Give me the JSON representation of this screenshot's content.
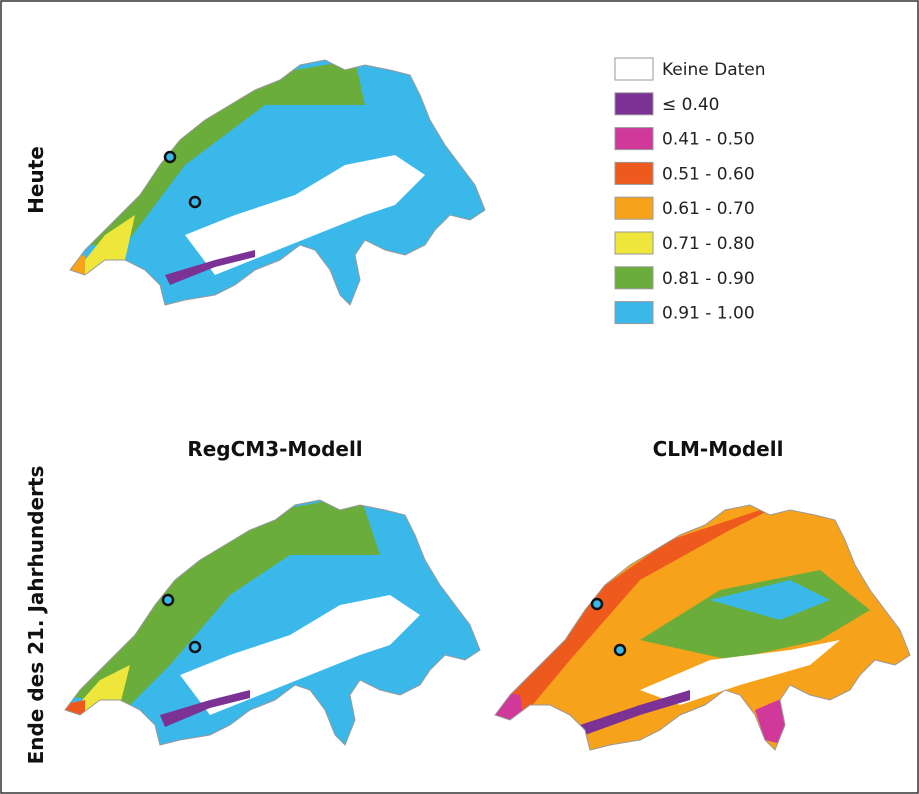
{
  "row_labels": [
    "Heute",
    "Ende des 21. Jahrhunderts"
  ],
  "column_titles": [
    "RegCM3-Modell",
    "CLM-Modell"
  ],
  "legend": [
    {
      "label": "Keine Daten",
      "color": "#ffffff"
    },
    {
      "label": "≤ 0.40",
      "color": "#7b3294"
    },
    {
      "label": "0.41 - 0.50",
      "color": "#d0389a"
    },
    {
      "label": "0.51 - 0.60",
      "color": "#ee5a1e"
    },
    {
      "label": "0.61 - 0.70",
      "color": "#f7a21b"
    },
    {
      "label": "0.71 - 0.80",
      "color": "#eee63a"
    },
    {
      "label": "0.81 - 0.90",
      "color": "#6aad3a"
    },
    {
      "label": "0.91 - 1.00",
      "color": "#3ab8ea"
    }
  ]
}
